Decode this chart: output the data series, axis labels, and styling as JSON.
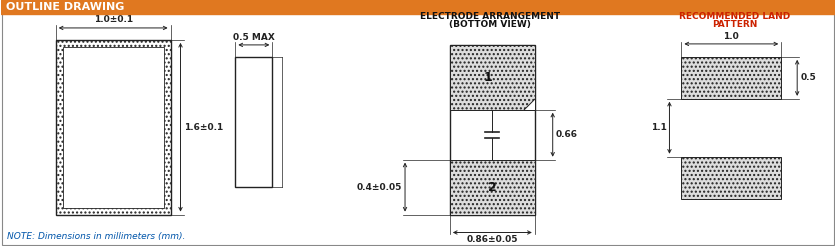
{
  "title": "OUTLINE DRAWING",
  "title_bg": "#E07820",
  "title_text_color": "white",
  "bg_color": "#FFFFFF",
  "border_color": "#888888",
  "line_color": "#222222",
  "dim_color": "#222222",
  "note_text": "NOTE: Dimensions in millimeters (mm).",
  "note_color": "#0055AA",
  "elec_title1": "ELECTRODE ARRANGEMENT",
  "elec_title2": "(BOTTOM VIEW)",
  "land_title1": "RECOMMENDED LAND",
  "land_title2": "PATTERN",
  "labels": {
    "width_top": "1.0±0.1",
    "height_left": "1.6±0.1",
    "side_width": "0.5 MAX",
    "bottom_width": "0.86±0.05",
    "bottom_height": "0.4±0.05",
    "mid_gap": "0.66",
    "land_width": "1.0",
    "land_height_top": "0.5",
    "land_gap": "1.1"
  }
}
